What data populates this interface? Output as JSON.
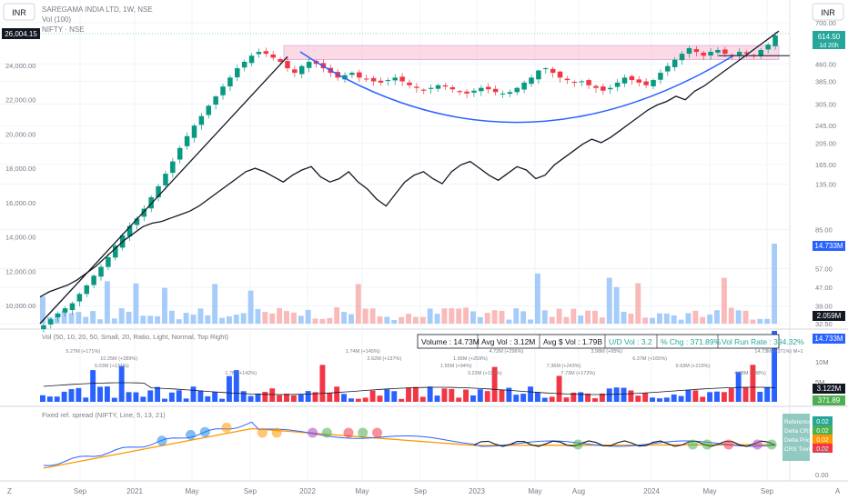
{
  "header": {
    "currency_left": "INR",
    "currency_right": "INR",
    "symbol_line": "SAREGAMA INDIA LTD, 1W, NSE",
    "vol_line": "Vol (100)",
    "compare_line": "NIFTY · NSE"
  },
  "badges": {
    "nifty_last": "26,004.15",
    "price_last": "614.50",
    "bar_countdown": "1d 20h",
    "vol_last": "2.059M",
    "vol_panel_last": "14.733M",
    "vol_panel_avg": "3.122M",
    "vol_panel_pct": "371.89",
    "volume_main": "14.733M"
  },
  "stats_bar": {
    "volume": "Volume : 14.73M",
    "avg_vol": "Avg Vol : 3.12M",
    "avg_dollar_vol": "Avg $ Vol : 1.79B",
    "ud_vol": "U/D Vol : 3.2",
    "pct_chg": "% Chg : 371.89%",
    "run_rate": "Vol Run Rate : 394.32%"
  },
  "vol_panel": {
    "title": "Vol (50, 10, 20, 50, Small, 20, Ratio, Light, Normal, Top Right)",
    "annotations": [
      {
        "x": 6,
        "label": "5.27M (+171%)"
      },
      {
        "x": 11,
        "label": "10.25M (+289%)"
      },
      {
        "x": 10,
        "label": "6.03M (+131%)"
      },
      {
        "x": 28,
        "label": "1.7M (+142%)"
      },
      {
        "x": 45,
        "label": "1.74M (+145%)"
      },
      {
        "x": 48,
        "label": "2.62M (+137%)"
      },
      {
        "x": 58,
        "label": "1.55M (+94%)"
      },
      {
        "x": 62,
        "label": "3.22M (+133%)"
      },
      {
        "x": 65,
        "label": "4.72M (+296%)"
      },
      {
        "x": 60,
        "label": "1.65M (+259%)"
      },
      {
        "x": 73,
        "label": "7.36M (+243%)"
      },
      {
        "x": 75,
        "label": "7.73M (+172%)"
      },
      {
        "x": 79,
        "label": "3.98M (+95%)"
      },
      {
        "x": 85,
        "label": "6.37M (+165%)"
      },
      {
        "x": 91,
        "label": "9.93M (+215%)"
      },
      {
        "x": 99,
        "label": "4.38M (+88%)"
      },
      {
        "x": 103,
        "label": "14.73M (+371%) M+1"
      }
    ]
  },
  "rs_panel": {
    "title": "Fixed ref. spread (NIFTY, Line, 5, 13, 21)",
    "legend": [
      {
        "label": "Reference",
        "value": "0.02",
        "color": "#26a69a"
      },
      {
        "label": "Delta CRS",
        "value": "0.02",
        "color": "#4caf50"
      },
      {
        "label": "Delta Price",
        "value": "0.02",
        "color": "#ff9800"
      },
      {
        "label": "CRS Trend",
        "value": "0.02",
        "color": "#f23645"
      }
    ]
  },
  "x_axis": {
    "ticks": [
      "Sep",
      "2021",
      "May",
      "Sep",
      "2022",
      "May",
      "Sep",
      "2023",
      "May",
      "Aug",
      "2024",
      "May",
      "Sep"
    ]
  },
  "footer": {
    "left_letter": "Z",
    "right_letter": "A"
  },
  "chart_data": {
    "type": "candlestick",
    "price_axis": {
      "scale": "log",
      "ticks": [
        "700.00",
        "460.00",
        "385.00",
        "305.00",
        "245.00",
        "205.00",
        "165.00",
        "135.00",
        "85.00",
        "57.00",
        "47.00",
        "39.00",
        "32.50"
      ]
    },
    "nifty_axis": {
      "ticks": [
        "24,000.00",
        "22,000.00",
        "20,000.00",
        "18,000.00",
        "16,000.00",
        "14,000.00",
        "12,000.00",
        "10,000.00"
      ]
    },
    "vol_panel_axis": {
      "ticks": [
        "10M",
        "5M"
      ]
    },
    "rs_panel_axis": {
      "ticks": [
        "0.02",
        "0.00"
      ]
    },
    "resistance_zone": {
      "low": 480,
      "high": 555
    },
    "price_series_approx": [
      32,
      34,
      36,
      38,
      40,
      44,
      48,
      53,
      58,
      64,
      72,
      80,
      88,
      95,
      105,
      118,
      132,
      150,
      170,
      195,
      220,
      245,
      270,
      300,
      330,
      365,
      400,
      440,
      470,
      500,
      520,
      510,
      490,
      470,
      440,
      420,
      450,
      470,
      460,
      440,
      420,
      400,
      410,
      420,
      400,
      395,
      385,
      380,
      390,
      400,
      385,
      370,
      360,
      350,
      360,
      370,
      365,
      355,
      345,
      340,
      350,
      360,
      355,
      345,
      340,
      345,
      360,
      380,
      400,
      430,
      440,
      420,
      400,
      390,
      380,
      385,
      370,
      360,
      350,
      360,
      380,
      400,
      390,
      380,
      370,
      390,
      420,
      450,
      480,
      510,
      540,
      520,
      500,
      520,
      530,
      510,
      500,
      520,
      510,
      500,
      530,
      560,
      614.5
    ],
    "nifty_series_approx": [
      10500,
      10800,
      11000,
      11200,
      11500,
      11900,
      12300,
      12800,
      13300,
      13800,
      14200,
      14600,
      14800,
      14900,
      15100,
      15300,
      15500,
      15800,
      16200,
      16600,
      17000,
      17400,
      17800,
      18000,
      17800,
      17500,
      17200,
      17600,
      17900,
      18100,
      17500,
      17200,
      17400,
      17800,
      17200,
      16800,
      16200,
      15800,
      16500,
      17200,
      17600,
      17800,
      17400,
      17100,
      17800,
      18200,
      18400,
      18000,
      17600,
      17300,
      17700,
      18100,
      17900,
      17400,
      17600,
      18200,
      18600,
      19000,
      19400,
      19700,
      19500,
      19800,
      20200,
      20600,
      21000,
      21400,
      21700,
      21900,
      22200,
      22000,
      22500,
      22800,
      23200,
      23600,
      24000,
      24400,
      24800,
      25200,
      25600,
      26004.15
    ]
  }
}
